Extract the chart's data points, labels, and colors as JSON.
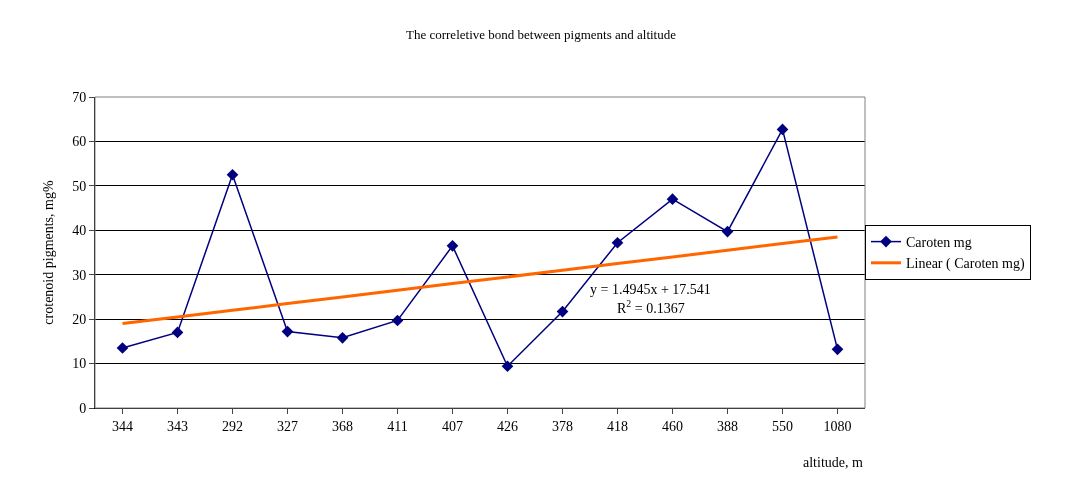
{
  "chart_data": {
    "type": "line",
    "title": "The correletive bond between pigments and altitude",
    "xlabel": "altitude, m",
    "ylabel": "crotenoid pigments, mg%",
    "categories": [
      "344",
      "343",
      "292",
      "327",
      "368",
      "411",
      "407",
      "426",
      "378",
      "418",
      "460",
      "388",
      "550",
      "1080"
    ],
    "series": [
      {
        "name": "Caroten mg",
        "color": "#000080",
        "marker": "diamond",
        "values": [
          13.5,
          17,
          52.5,
          17.2,
          15.8,
          19.7,
          36.5,
          9.4,
          21.7,
          37.2,
          47,
          39.7,
          62.7,
          13.2
        ]
      },
      {
        "name": "Linear ( Caroten mg)",
        "color": "#ff6600",
        "marker": "none",
        "values": [
          19.0,
          20.5,
          22.0,
          23.5,
          25.0,
          26.5,
          28.0,
          29.5,
          31.0,
          32.5,
          34.0,
          35.5,
          37.0,
          38.5
        ]
      }
    ],
    "annotations": [
      "y = 1.4945x + 17.541",
      "R$^{2}$ = 0.1367"
    ],
    "ylim": [
      0,
      70
    ],
    "yticks": [
      0,
      10,
      20,
      30,
      40,
      50,
      60,
      70
    ],
    "grid": "y",
    "legend": "right"
  }
}
